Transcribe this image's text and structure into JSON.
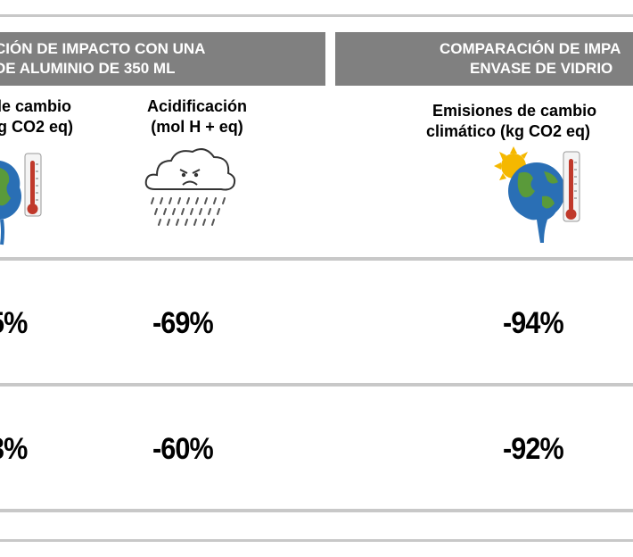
{
  "header_left": {
    "line1": "CIÓN DE IMPACTO CON UNA",
    "line2": "DE ALUMINIO DE 350 ML"
  },
  "header_right": {
    "line1": "COMPARACIÓN DE IMPA",
    "line2": "ENVASE DE VIDRIO"
  },
  "columns": [
    {
      "line1": "le cambio",
      "line2": "g CO2 eq)",
      "icon": "thermometer-earth-icon"
    },
    {
      "line1": "Acidificación",
      "line2": "(mol H + eq)",
      "icon": "acid-rain-cloud-icon"
    },
    {
      "line1": "Emisiones de cambio",
      "line2": "climático (kg CO2 eq)",
      "icon": "melting-earth-thermometer-icon"
    }
  ],
  "rows": [
    {
      "values": [
        "5%",
        "-69%",
        "-94%"
      ]
    },
    {
      "values": [
        "3%",
        "-60%",
        "-92%"
      ]
    }
  ],
  "colors": {
    "header_bg": "#808080",
    "rule": "#c8c8c8",
    "earth_blue": "#2a6fb5",
    "earth_green": "#5a9a3a",
    "thermo_red": "#c0392b",
    "sun": "#f5b800"
  }
}
